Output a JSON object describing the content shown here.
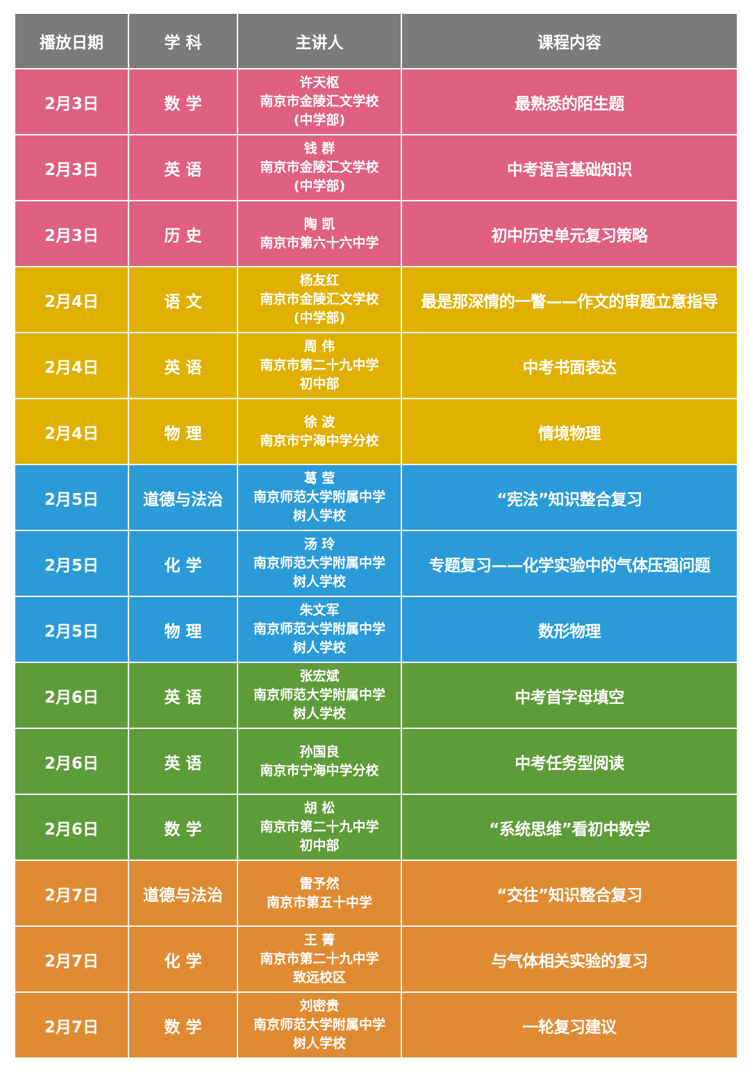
{
  "colors": {
    "header": "#7b7b7b",
    "2月3日": "#df607f",
    "2月4日": "#dfb000",
    "2月5日": "#2b9bd8",
    "2月6日": "#5e9c3a",
    "2月7日": "#df8b34"
  },
  "headers": [
    "播放日期",
    "学 科",
    "主讲人",
    "课程内容"
  ],
  "rows": [
    {
      "date": "2月3日",
      "subject": "数 学",
      "teacher": [
        "许天枢",
        "南京市金陵汇文学校",
        "(中学部)"
      ],
      "content": "最熟悉的陌生题"
    },
    {
      "date": "2月3日",
      "subject": "英 语",
      "teacher": [
        "钱 群",
        "南京市金陵汇文学校",
        "(中学部)"
      ],
      "content": "中考语言基础知识"
    },
    {
      "date": "2月3日",
      "subject": "历 史",
      "teacher": [
        "陶 凯",
        "南京市第六十六中学"
      ],
      "content": "初中历史单元复习策略"
    },
    {
      "date": "2月4日",
      "subject": "语 文",
      "teacher": [
        "杨友红",
        "南京市金陵汇文学校",
        "(中学部)"
      ],
      "content": "最是那深情的一瞥——作文的审题立意指导"
    },
    {
      "date": "2月4日",
      "subject": "英 语",
      "teacher": [
        "周 伟",
        "南京市第二十九中学",
        "初中部"
      ],
      "content": "中考书面表达"
    },
    {
      "date": "2月4日",
      "subject": "物 理",
      "teacher": [
        "徐 波",
        "南京市宁海中学分校"
      ],
      "content": "情境物理"
    },
    {
      "date": "2月5日",
      "subject": "道德与法治",
      "teacher": [
        "葛 莹",
        "南京师范大学附属中学",
        "树人学校"
      ],
      "content": "“宪法”知识整合复习"
    },
    {
      "date": "2月5日",
      "subject": "化 学",
      "teacher": [
        "汤 玲",
        "南京师范大学附属中学",
        "树人学校"
      ],
      "content": "专题复习——化学实验中的气体压强问题"
    },
    {
      "date": "2月5日",
      "subject": "物 理",
      "teacher": [
        "朱文军",
        "南京师范大学附属中学",
        "树人学校"
      ],
      "content": "数形物理"
    },
    {
      "date": "2月6日",
      "subject": "英 语",
      "teacher": [
        "张宏斌",
        "南京师范大学附属中学",
        "树人学校"
      ],
      "content": "中考首字母填空"
    },
    {
      "date": "2月6日",
      "subject": "英 语",
      "teacher": [
        "孙国良",
        "南京市宁海中学分校"
      ],
      "content": "中考任务型阅读"
    },
    {
      "date": "2月6日",
      "subject": "数 学",
      "teacher": [
        "胡 松",
        "南京市第二十九中学",
        "初中部"
      ],
      "content": "“系统思维”看初中数学"
    },
    {
      "date": "2月7日",
      "subject": "道德与法治",
      "teacher": [
        "雷予然",
        "南京市第五十中学"
      ],
      "content": "“交往”知识整合复习"
    },
    {
      "date": "2月7日",
      "subject": "化 学",
      "teacher": [
        "王 菁",
        "南京市第二十九中学",
        "致远校区"
      ],
      "content": "与气体相关实验的复习"
    },
    {
      "date": "2月7日",
      "subject": "数 学",
      "teacher": [
        "刘密贵",
        "南京师范大学附属中学",
        "树人学校"
      ],
      "content": "一轮复习建议"
    }
  ]
}
